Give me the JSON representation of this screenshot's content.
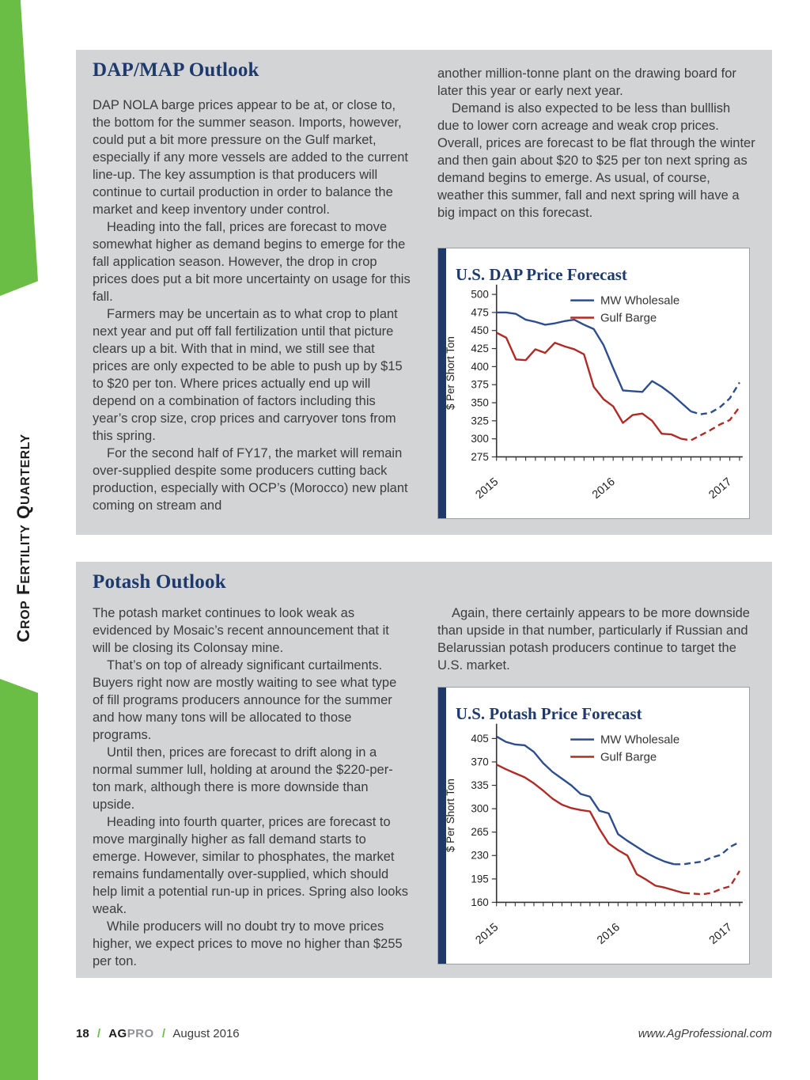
{
  "page": {
    "sidebar_label": "Crop Fertility Quarterly",
    "footer": {
      "page_number": "18",
      "separator": "/",
      "brand_ag": "AG",
      "brand_pro": "PRO",
      "issue": "August 2016",
      "website": "www.AgProfessional.com"
    },
    "colors": {
      "accent_green": "#6abd45",
      "navy": "#1e3a6c",
      "box_gray": "#d2d4d6",
      "line_blue": "#2c4d8e",
      "line_red": "#b02a26"
    }
  },
  "sections": [
    {
      "title": "DAP/MAP Outlook",
      "left_col": {
        "indent_first": false,
        "paragraphs": [
          "DAP NOLA barge prices appear to be at, or close to, the bottom for the summer season. Imports, however, could put a bit more pressure on the Gulf market, especially if any more vessels are added to the current line-up. The key assumption is that producers will continue to curtail production in order to balance the market and keep inventory under control.",
          "Heading into the fall, prices are forecast to move somewhat higher as demand begins to emerge for the fall application season. However, the drop in crop prices does put a bit more uncertainty on usage for this fall.",
          "Farmers may be uncertain as to what crop to plant next year and put off fall fertilization until that picture clears up a bit. With that in mind, we still see that prices are only expected to be able to push up by $15 to $20 per ton. Where prices actually end up will depend on a combination of factors including this year’s crop size, crop prices and carryover tons from this spring.",
          "For the second half of FY17, the market will remain over-supplied despite some producers cutting back production, especially with OCP’s (Morocco) new plant coming on stream and"
        ]
      },
      "right_col": {
        "indent_first": false,
        "paragraphs": [
          "another million-tonne plant on the drawing board for later this year or early next year.",
          "Demand is also expected to be less than bulllish due to lower corn acreage and weak crop prices. Overall, prices are forecast to be flat through the winter and then gain about $20 to $25 per ton next spring as demand begins to emerge. As usual, of course, weather this summer, fall and next spring will have a big impact on this forecast."
        ]
      }
    },
    {
      "title": "Potash Outlook",
      "left_col": {
        "indent_first": false,
        "paragraphs": [
          "The potash market continues to look weak as evidenced by Mosaic’s recent announcement that it will be closing its Colonsay mine.",
          "That’s on top of already significant curtailments. Buyers right now are mostly waiting to see what type of fill programs producers announce for the summer and how many tons will be allocated to those programs.",
          "Until then, prices are forecast to drift along in a normal summer lull, holding at around the $220-per-ton mark, although there is more downside than upside.",
          "Heading into fourth quarter, prices are forecast to move marginally higher as fall demand starts to emerge. However, similar to phosphates, the market remains fundamentally over-supplied, which should help limit a potential run-up in prices. Spring also looks weak.",
          "While producers will no doubt try to move prices higher, we expect prices to move no higher than $255 per ton."
        ]
      },
      "right_col": {
        "indent_first": true,
        "paragraphs": [
          "Again, there certainly appears to be more downside than upside in that number, particularly if Russian and Belarussian potash producers continue to target the U.S. market."
        ]
      }
    }
  ],
  "chart_data": [
    {
      "type": "line",
      "title": "U.S. DAP Price Forecast",
      "ylabel": "$ Per Short Ton",
      "ylim": [
        275,
        507
      ],
      "yticks": [
        500,
        475,
        450,
        425,
        400,
        375,
        350,
        325,
        300,
        275
      ],
      "x_tick_labels": [
        "2015",
        "2016",
        "2017"
      ],
      "x_tick_indexes": [
        0,
        12,
        24
      ],
      "n_points": 26,
      "grid": false,
      "legend_position": "top-center",
      "note": "dashed segments are forecast",
      "series": [
        {
          "name": "MW Wholesale",
          "color": "#2c4d8e",
          "solid_until_index": 20,
          "values": [
            475,
            475,
            473,
            465,
            462,
            458,
            460,
            463,
            465,
            458,
            452,
            430,
            398,
            367,
            366,
            365,
            380,
            372,
            362,
            350,
            338,
            334,
            336,
            344,
            356,
            378
          ]
        },
        {
          "name": "Gulf Barge",
          "color": "#b02a26",
          "solid_until_index": 19,
          "values": [
            447,
            440,
            410,
            409,
            424,
            419,
            433,
            428,
            424,
            417,
            372,
            355,
            345,
            322,
            333,
            335,
            325,
            307,
            306,
            300,
            298,
            305,
            312,
            320,
            326,
            344
          ]
        }
      ]
    },
    {
      "type": "line",
      "title": "U.S. Potash Price Forecast",
      "ylabel": "$ Per Short Ton",
      "ylim": [
        160,
        420
      ],
      "yticks": [
        405,
        370,
        335,
        300,
        265,
        230,
        195,
        160
      ],
      "x_tick_labels": [
        "2015",
        "2016",
        "2017"
      ],
      "x_tick_indexes": [
        0,
        13,
        25
      ],
      "n_points": 27,
      "grid": false,
      "legend_position": "top-center",
      "note": "dashed segments are forecast",
      "series": [
        {
          "name": "MW Wholesale",
          "color": "#2c4d8e",
          "solid_until_index": 19,
          "values": [
            408,
            400,
            396,
            395,
            385,
            368,
            355,
            345,
            335,
            322,
            318,
            297,
            293,
            262,
            252,
            243,
            234,
            227,
            221,
            217,
            217,
            219,
            221,
            227,
            231,
            243,
            250
          ]
        },
        {
          "name": "Gulf Barge",
          "color": "#b02a26",
          "solid_until_index": 20,
          "values": [
            366,
            359,
            353,
            347,
            338,
            327,
            315,
            306,
            301,
            298,
            296,
            270,
            248,
            238,
            230,
            202,
            194,
            185,
            182,
            178,
            174,
            173,
            172,
            174,
            180,
            184,
            207
          ]
        }
      ]
    }
  ]
}
